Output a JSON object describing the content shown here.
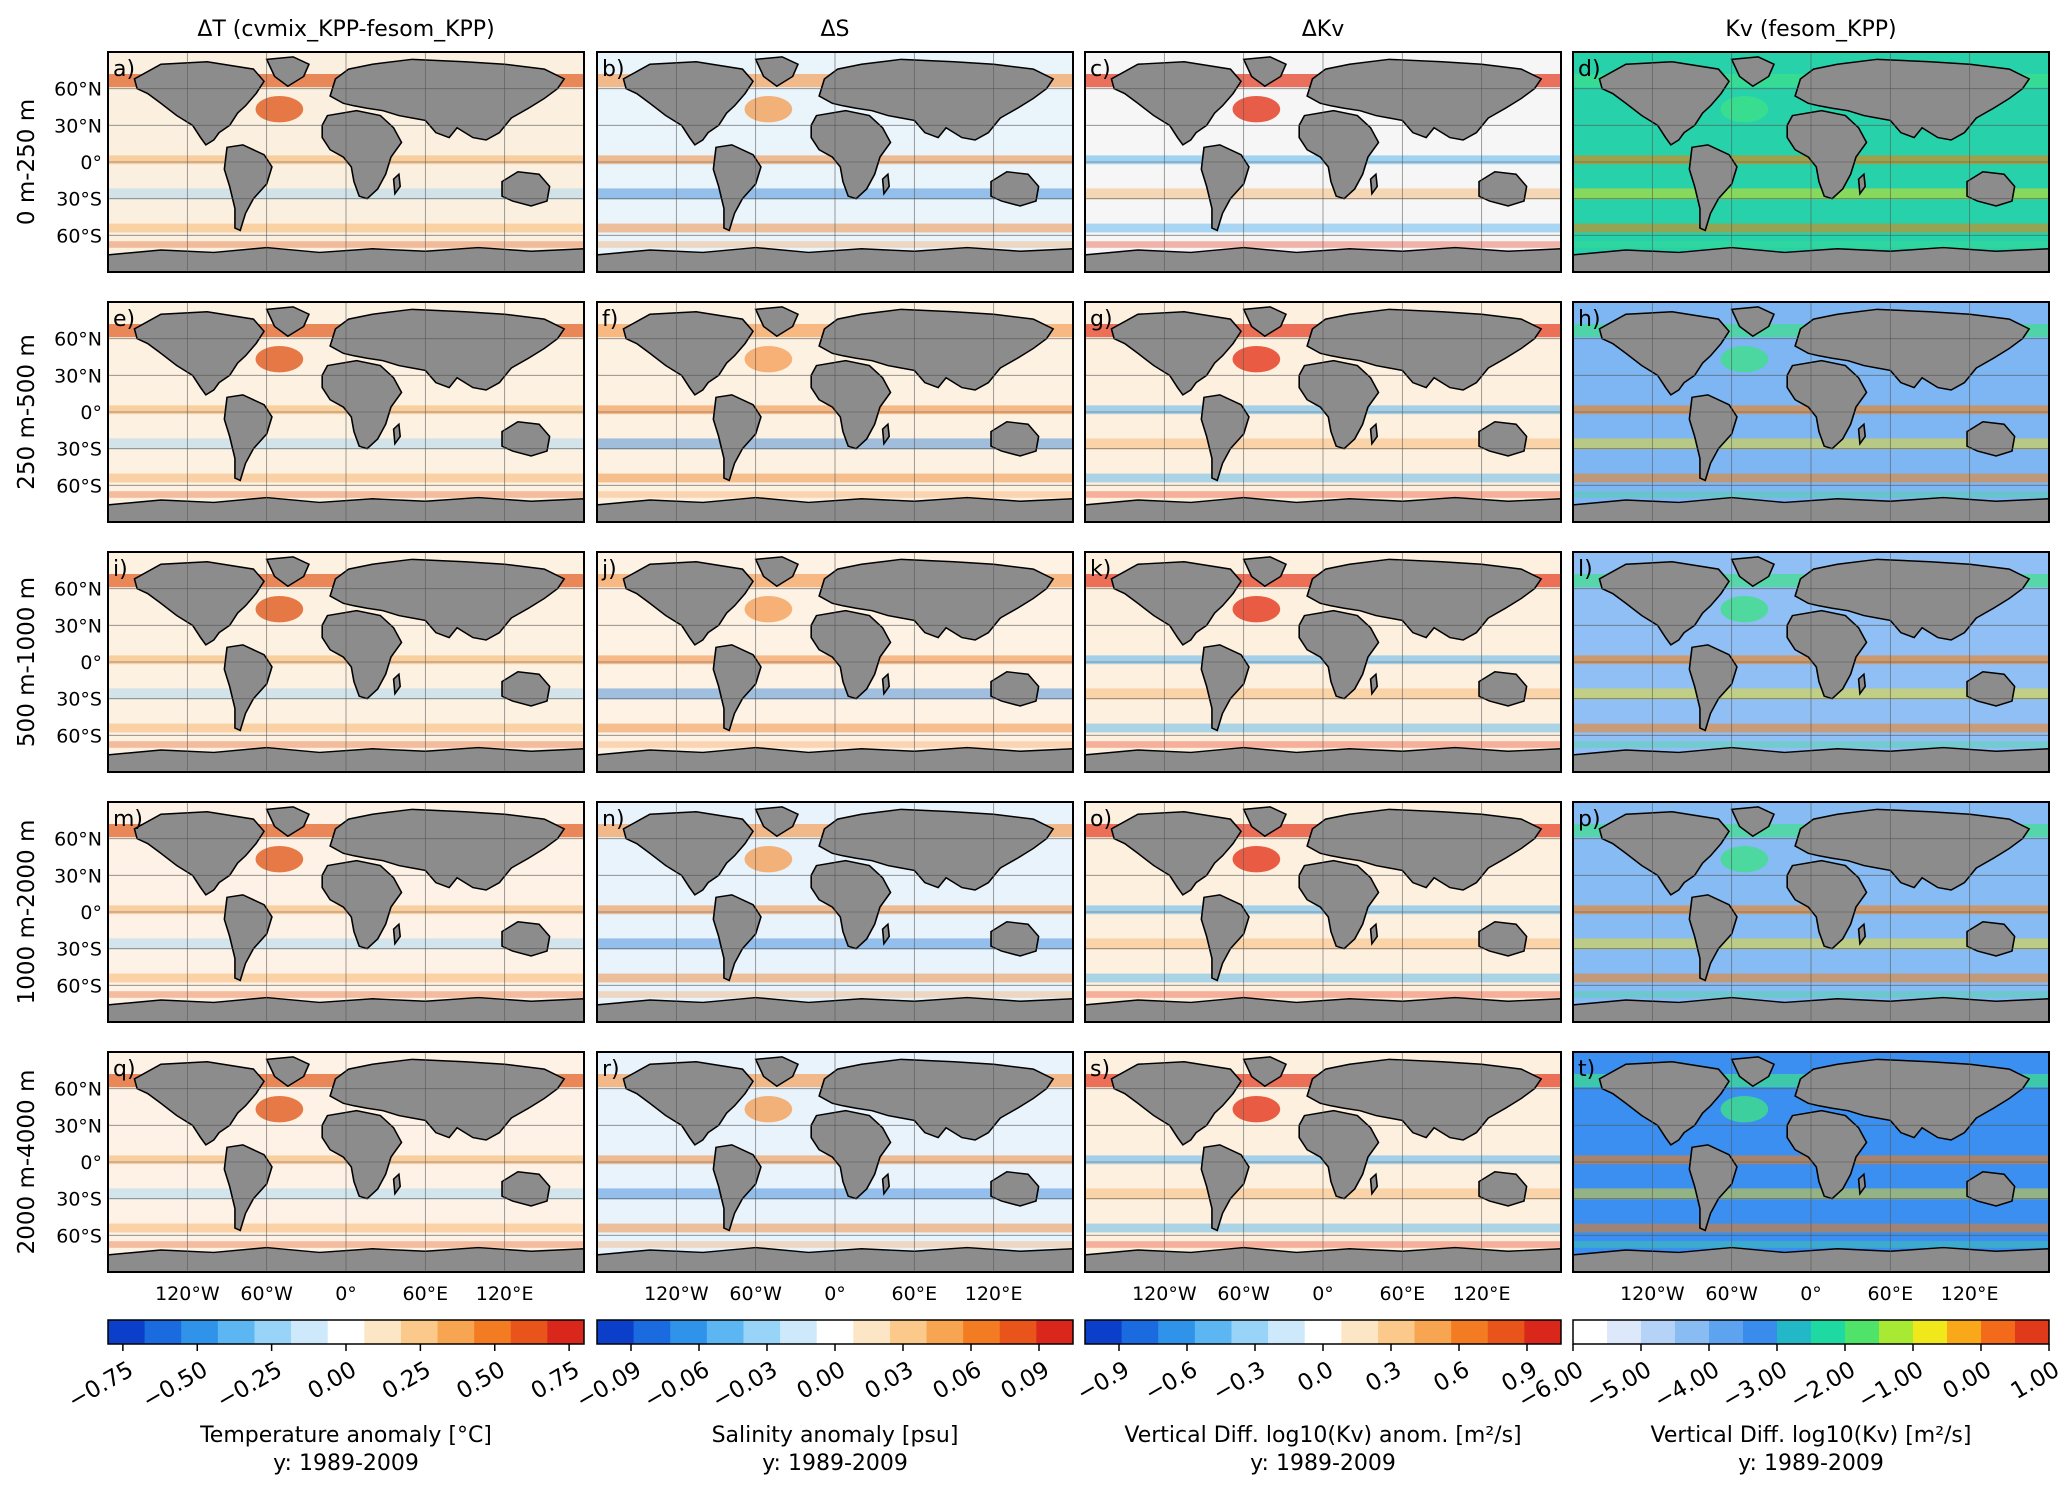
{
  "figure": {
    "column_titles": [
      "ΔT (cvmix_KPP-fesom_KPP)",
      "ΔS",
      "ΔKv",
      "Kv (fesom_KPP)"
    ],
    "row_labels": [
      "0 m-250 m",
      "250 m-500 m",
      "500 m-1000 m",
      "1000 m-2000 m",
      "2000 m-4000 m"
    ],
    "panel_letters": [
      "a)",
      "b)",
      "c)",
      "d)",
      "e)",
      "f)",
      "g)",
      "h)",
      "i)",
      "j)",
      "k)",
      "l)",
      "m)",
      "n)",
      "o)",
      "p)",
      "q)",
      "r)",
      "s)",
      "t)"
    ],
    "lat_ticks": [
      "60°N",
      "30°N",
      "0°",
      "30°S",
      "60°S"
    ],
    "lon_ticks": [
      "120°W",
      "60°W",
      "0°",
      "60°E",
      "120°E"
    ],
    "colorbars": [
      {
        "label": "Temperature anomaly [°C]",
        "period": "y: 1989-2009",
        "ticks": [
          "−0.75",
          "−0.50",
          "−0.25",
          "0.00",
          "0.25",
          "0.50",
          "0.75"
        ],
        "range": [
          -0.8,
          0.8
        ],
        "colormap": "diverging-blue-white-red"
      },
      {
        "label": "Salinity anomaly [psu]",
        "period": "y: 1989-2009",
        "ticks": [
          "−0.09",
          "−0.06",
          "−0.03",
          "0.00",
          "0.03",
          "0.06",
          "0.09"
        ],
        "range": [
          -0.105,
          0.105
        ],
        "colormap": "diverging-blue-white-red"
      },
      {
        "label": "Vertical Diff. log10(Kv) anom. [m²/s]",
        "period": "y: 1989-2009",
        "ticks": [
          "−0.9",
          "−0.6",
          "−0.3",
          "0.0",
          "0.3",
          "0.6",
          "0.9"
        ],
        "range": [
          -1.05,
          1.05
        ],
        "colormap": "diverging-blue-white-red"
      },
      {
        "label": "Vertical Diff. log10(Kv) [m²/s]",
        "period": "y: 1989-2009",
        "ticks": [
          "−6.00",
          "−5.00",
          "−4.00",
          "−3.00",
          "−2.00",
          "−1.00",
          "0.00",
          "1.00"
        ],
        "range": [
          -6.0,
          1.0
        ],
        "colormap": "white-blue-green-yellow-red"
      }
    ],
    "colors": {
      "land": "#8c8c8c",
      "coast": "#000000",
      "grid": "#555555"
    }
  },
  "chart_data": [
    {
      "type": "heatmap",
      "panel": "a)",
      "variable": "ΔT",
      "depth": "0 m-250 m"
    },
    {
      "type": "heatmap",
      "panel": "b)",
      "variable": "ΔS",
      "depth": "0 m-250 m"
    },
    {
      "type": "heatmap",
      "panel": "c)",
      "variable": "ΔKv",
      "depth": "0 m-250 m"
    },
    {
      "type": "heatmap",
      "panel": "d)",
      "variable": "Kv",
      "depth": "0 m-250 m"
    },
    {
      "type": "heatmap",
      "panel": "e)",
      "variable": "ΔT",
      "depth": "250 m-500 m"
    },
    {
      "type": "heatmap",
      "panel": "f)",
      "variable": "ΔS",
      "depth": "250 m-500 m"
    },
    {
      "type": "heatmap",
      "panel": "g)",
      "variable": "ΔKv",
      "depth": "250 m-500 m"
    },
    {
      "type": "heatmap",
      "panel": "h)",
      "variable": "Kv",
      "depth": "250 m-500 m"
    },
    {
      "type": "heatmap",
      "panel": "i)",
      "variable": "ΔT",
      "depth": "500 m-1000 m"
    },
    {
      "type": "heatmap",
      "panel": "j)",
      "variable": "ΔS",
      "depth": "500 m-1000 m"
    },
    {
      "type": "heatmap",
      "panel": "k)",
      "variable": "ΔKv",
      "depth": "500 m-1000 m"
    },
    {
      "type": "heatmap",
      "panel": "l)",
      "variable": "Kv",
      "depth": "500 m-1000 m"
    },
    {
      "type": "heatmap",
      "panel": "m)",
      "variable": "ΔT",
      "depth": "1000 m-2000 m"
    },
    {
      "type": "heatmap",
      "panel": "n)",
      "variable": "ΔS",
      "depth": "1000 m-2000 m"
    },
    {
      "type": "heatmap",
      "panel": "o)",
      "variable": "ΔKv",
      "depth": "1000 m-2000 m"
    },
    {
      "type": "heatmap",
      "panel": "p)",
      "variable": "Kv",
      "depth": "1000 m-2000 m"
    },
    {
      "type": "heatmap",
      "panel": "q)",
      "variable": "ΔT",
      "depth": "2000 m-4000 m"
    },
    {
      "type": "heatmap",
      "panel": "r)",
      "variable": "ΔS",
      "depth": "2000 m-4000 m"
    },
    {
      "type": "heatmap",
      "panel": "s)",
      "variable": "ΔKv",
      "depth": "2000 m-4000 m"
    },
    {
      "type": "heatmap",
      "panel": "t)",
      "variable": "Kv",
      "depth": "2000 m-4000 m"
    }
  ]
}
